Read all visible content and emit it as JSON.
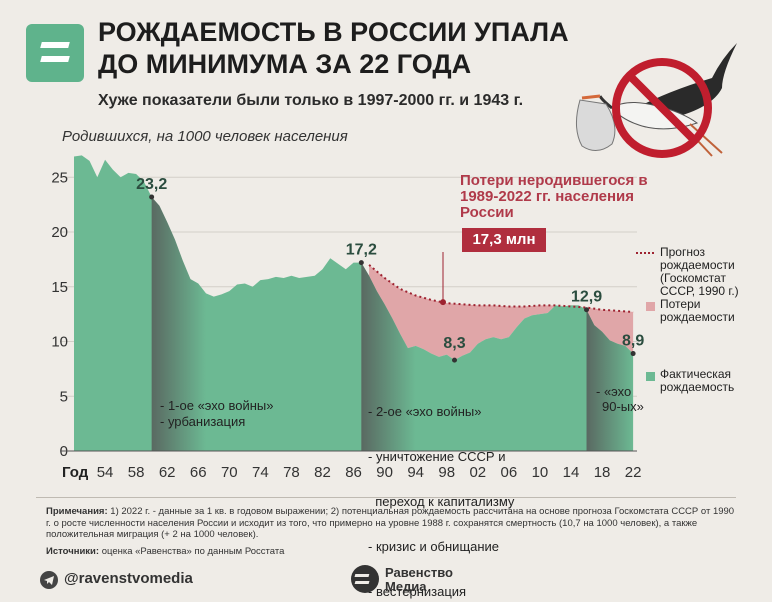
{
  "header": {
    "title": "РОЖДАЕМОСТЬ В РОССИИ УПАЛА ДО МИНИМУМА ЗА 22 ГОДА",
    "subtitle": "Хуже показатели были только в 1997-2000 гг. и 1943 г.",
    "axis_unit": "Родившихся, на 1000 человек населения"
  },
  "loss": {
    "title": "Потери неродившегося в 1989-2022 гг. населения России",
    "value": "17,3 млн"
  },
  "legend": {
    "forecast": "Прогноз рождаемости (Госкомстат СССР, 1990 г.)",
    "losses": "Потери рождаемости",
    "actual": "Фактическая рождаемость"
  },
  "annotations": {
    "echo1": [
      "- 1-ое «эхо войны»",
      "- урбанизация"
    ],
    "echo2": [
      "- 2-ое «эхо войны»",
      "- уничтожение СССР и",
      "  переход к капитализму",
      "- кризис и обнищание",
      "- вестернизация"
    ],
    "echo3": [
      "- «эхо",
      "90-ых»"
    ]
  },
  "footnote": {
    "label": "Примечания:",
    "text": "1) 2022 г. - данные за 1 кв. в годовом выражении; 2) потенциальная рождаемость рассчитана на основе прогноза Госкомстата СССР от 1990 г. о росте численности населения России и исходит из того, что примерно на уровне 1988 г. сохранятся смертность (10,7 на 1000 человек), а также положительная миграция (+ 2 на 1000 человек)."
  },
  "source": {
    "label": "Источники:",
    "text": "оценка «Равенства» по данным Росстата"
  },
  "footer": {
    "telegram": "@ravenstvomedia",
    "brand_line1": "Равенство",
    "brand_line2": "Медиа"
  },
  "colors": {
    "actual": "#6cb993",
    "loss": "#e0a6a8",
    "forecast": "#9e2230",
    "shade": "#555555",
    "label": "#2b4d3f"
  },
  "chart_data": {
    "type": "area",
    "xlabel": "Год",
    "ylabel": "Родившихся, на 1000 человек населения",
    "ylim": [
      0,
      27
    ],
    "yticks": [
      0,
      5,
      10,
      15,
      20,
      25
    ],
    "xtick_labels": [
      "54",
      "58",
      "62",
      "66",
      "70",
      "74",
      "78",
      "82",
      "86",
      "90",
      "94",
      "98",
      "02",
      "06",
      "10",
      "14",
      "18",
      "22"
    ],
    "xtick_years": [
      1954,
      1958,
      1962,
      1966,
      1970,
      1974,
      1978,
      1982,
      1986,
      1990,
      1994,
      1998,
      2002,
      2006,
      2010,
      2014,
      2018,
      2022
    ],
    "series": [
      {
        "name": "Фактическая рождаемость",
        "x": [
          1950,
          1951,
          1952,
          1953,
          1954,
          1955,
          1956,
          1957,
          1958,
          1959,
          1960,
          1961,
          1962,
          1963,
          1964,
          1965,
          1966,
          1967,
          1968,
          1969,
          1970,
          1971,
          1972,
          1973,
          1974,
          1975,
          1976,
          1977,
          1978,
          1979,
          1980,
          1981,
          1982,
          1983,
          1984,
          1985,
          1986,
          1987,
          1988,
          1989,
          1990,
          1991,
          1992,
          1993,
          1994,
          1995,
          1996,
          1997,
          1998,
          1999,
          2000,
          2001,
          2002,
          2003,
          2004,
          2005,
          2006,
          2007,
          2008,
          2009,
          2010,
          2011,
          2012,
          2013,
          2014,
          2015,
          2016,
          2017,
          2018,
          2019,
          2020,
          2021,
          2022
        ],
        "values": [
          26.9,
          27.0,
          26.5,
          25.0,
          26.6,
          25.7,
          25.0,
          25.4,
          25.3,
          24.6,
          23.2,
          22.4,
          20.9,
          19.3,
          17.4,
          15.7,
          15.3,
          14.4,
          14.1,
          14.3,
          14.6,
          15.2,
          15.3,
          15.0,
          15.6,
          15.7,
          15.9,
          15.8,
          16.0,
          15.8,
          15.9,
          16.0,
          16.6,
          17.6,
          17.1,
          16.6,
          17.2,
          17.2,
          16.0,
          14.6,
          13.4,
          12.1,
          10.7,
          9.4,
          9.6,
          9.3,
          8.9,
          8.6,
          8.8,
          8.3,
          8.7,
          9.0,
          9.8,
          10.2,
          10.4,
          10.2,
          10.4,
          11.3,
          12.1,
          12.4,
          12.5,
          12.6,
          13.3,
          13.2,
          13.3,
          13.3,
          12.9,
          11.5,
          10.9,
          10.1,
          9.8,
          9.6,
          8.9
        ]
      },
      {
        "name": "Прогноз рождаемости (Госкомстат СССР, 1990 г.)",
        "x": [
          1988,
          1990,
          1992,
          1994,
          1996,
          1998,
          2000,
          2002,
          2004,
          2006,
          2008,
          2010,
          2012,
          2014,
          2016,
          2018,
          2020,
          2022
        ],
        "values": [
          17.0,
          15.8,
          14.8,
          14.2,
          13.8,
          13.5,
          13.4,
          13.3,
          13.3,
          13.2,
          13.2,
          13.3,
          13.3,
          13.2,
          13.1,
          12.9,
          12.8,
          12.7
        ]
      }
    ],
    "data_labels": [
      {
        "x": 1960,
        "value": "23,2"
      },
      {
        "x": 1987,
        "value": "17,2"
      },
      {
        "x": 1999,
        "value": "8,3"
      },
      {
        "x": 2016,
        "value": "12,9"
      },
      {
        "x": 2022,
        "value": "8,9"
      }
    ],
    "shaded_periods": [
      [
        1960,
        1967
      ],
      [
        1987,
        1994
      ],
      [
        2016,
        2022
      ]
    ],
    "legend_position": "right"
  }
}
